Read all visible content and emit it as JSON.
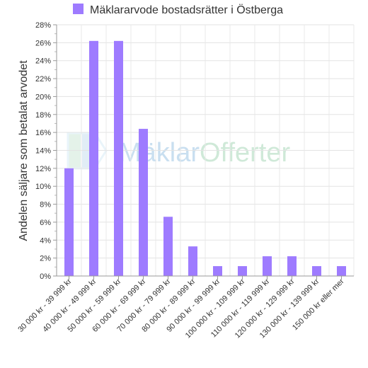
{
  "chart_data": {
    "type": "bar",
    "title": "",
    "xlabel": "",
    "ylabel": "Andelen säljare som betalat arvodet",
    "ylim": [
      0,
      28
    ],
    "ytick_step": 2,
    "ytick_suffix": "%",
    "grid": true,
    "legend_placement": "top",
    "categories": [
      "30 000 kr - 39 999 kr",
      "40 000 kr - 49 999 kr",
      "50 000 kr - 59 999 kr",
      "60 000 kr - 69 999 kr",
      "70 000 kr - 79 999 kr",
      "80 000 kr - 89 999 kr",
      "90 000 kr - 99 999 kr",
      "100 000 kr - 109 999 kr",
      "110 000 kr - 119 999 kr",
      "120 000 kr - 129 999 kr",
      "130 000 kr - 139 999 kr",
      "150 000 kr eller mer"
    ],
    "series": [
      {
        "name": "Mäklararvode bostadsrätter i Östberga",
        "color": "#9e7bff",
        "values": [
          12.0,
          26.2,
          26.2,
          16.4,
          6.6,
          3.3,
          1.1,
          1.1,
          2.2,
          2.2,
          1.1,
          1.1
        ]
      }
    ]
  },
  "watermark": {
    "text_part1": "Mäklar",
    "text_part2": "Offerter",
    "color1": "#c9dff0",
    "color2": "#cfe9d8"
  }
}
